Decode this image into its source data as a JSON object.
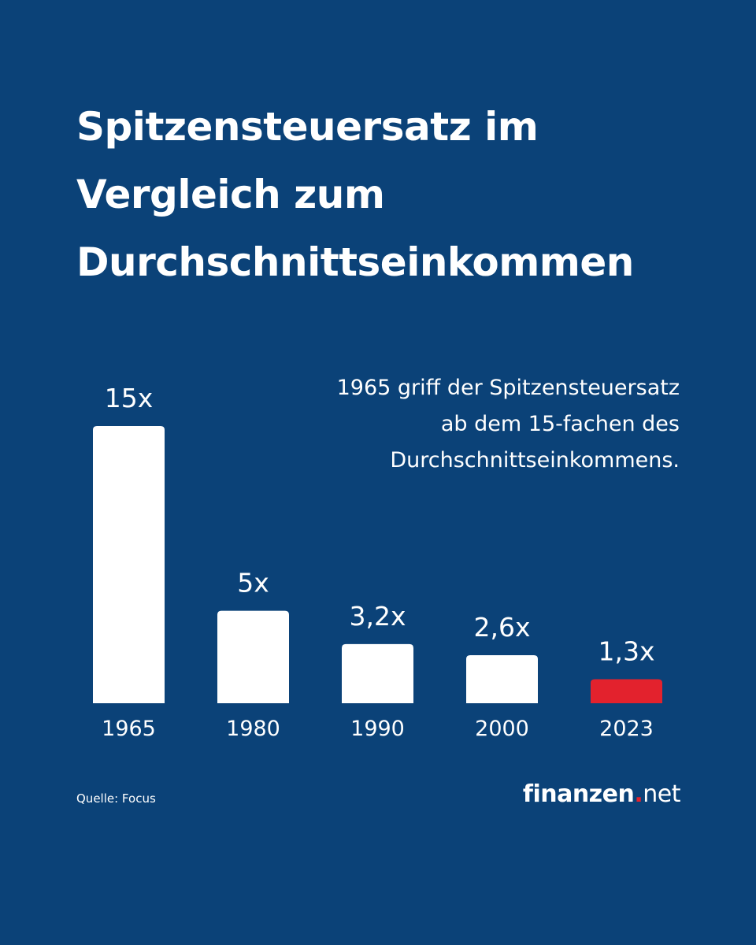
{
  "title_lines": [
    "Spitzensteuersatz im",
    "Vergleich zum",
    "Durchschnittseinkommen"
  ],
  "annotation_lines": [
    "1965 griff der Spitzensteuersatz",
    "ab dem 15-fachen des",
    "Durchschnittseinkommens."
  ],
  "source": "Quelle: Focus",
  "logo": {
    "brand": "finanzen",
    "dot": ".",
    "tld": "net"
  },
  "colors": {
    "background": "#0b4278",
    "bar": "#ffffff",
    "highlight": "#e3222d",
    "text": "#ffffff"
  },
  "chart_data": {
    "type": "bar",
    "title": "Spitzensteuersatz im Vergleich zum Durchschnittseinkommen",
    "categories": [
      "1965",
      "1980",
      "1990",
      "2000",
      "2023"
    ],
    "values": [
      15,
      5,
      3.2,
      2.6,
      1.3
    ],
    "value_labels": [
      "15x",
      "5x",
      "3,2x",
      "2,6x",
      "1,3x"
    ],
    "highlight_index": 4,
    "xlabel": "",
    "ylabel": "",
    "ylim": [
      0,
      15
    ],
    "grid": false,
    "annotation": "1965 griff der Spitzensteuersatz ab dem 15-fachen des Durchschnittseinkommens."
  }
}
